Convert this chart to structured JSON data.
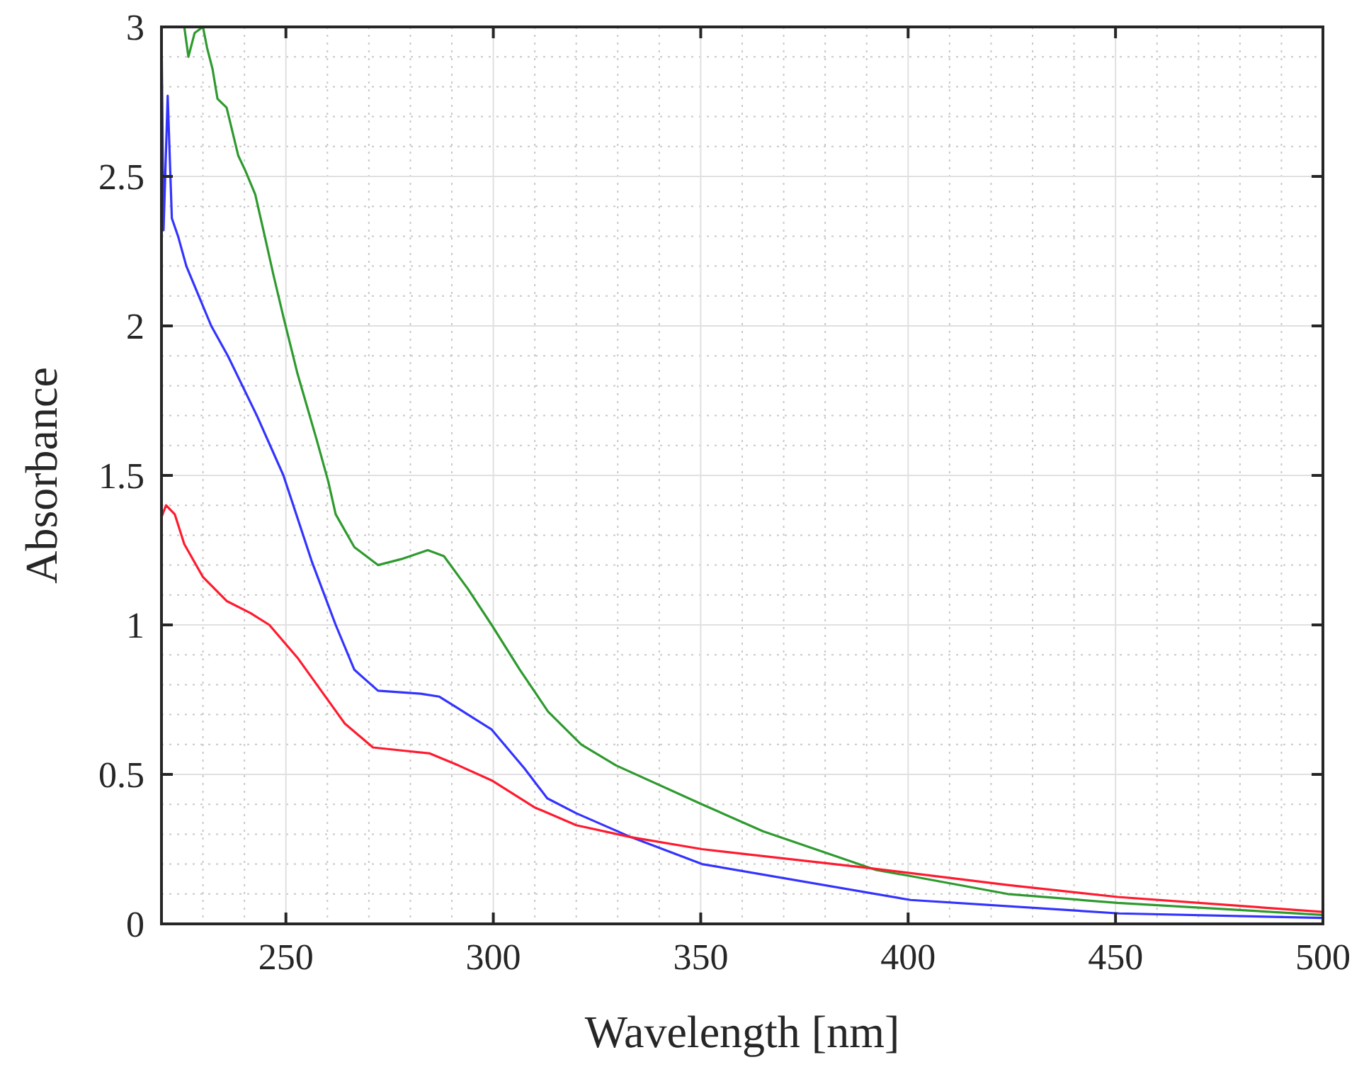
{
  "chart_data": {
    "type": "line",
    "xlabel": "Wavelength [nm]",
    "ylabel": "Absorbance",
    "xlim": [
      220,
      500
    ],
    "ylim": [
      0,
      3
    ],
    "xticks": [
      250,
      300,
      350,
      400,
      450,
      500
    ],
    "yticks": [
      0,
      0.5,
      1,
      1.5,
      2,
      2.5,
      3
    ],
    "grid": true,
    "marker": "none",
    "line_style": "solid",
    "series": [
      {
        "color": "#2e9a2e",
        "x": [
          225.5,
          226.5,
          228,
          230,
          231,
          232.3,
          233.5,
          235.7,
          238.5,
          240.2,
          242.6,
          244.9,
          247,
          249.4,
          252.8,
          257.4,
          260.2,
          262,
          266.5,
          272.2,
          277.8,
          284.2,
          288.1,
          293.9,
          299.6,
          306.4,
          313.2,
          321.2,
          329.6,
          350.3,
          365,
          392.3,
          400.6,
          424,
          450.5,
          500
        ],
        "values": [
          3.0,
          2.9,
          2.98,
          3.0,
          2.93,
          2.86,
          2.76,
          2.73,
          2.57,
          2.52,
          2.44,
          2.3,
          2.17,
          2.03,
          1.84,
          1.62,
          1.48,
          1.37,
          1.26,
          1.2,
          1.22,
          1.25,
          1.23,
          1.12,
          1.0,
          0.85,
          0.71,
          0.6,
          0.53,
          0.4,
          0.31,
          0.18,
          0.16,
          0.1,
          0.07,
          0.03
        ]
      },
      {
        "color": "#3333ff",
        "x": [
          220,
          220.5,
          221.5,
          222.5,
          224,
          226,
          229,
          232,
          236,
          243,
          249.4,
          256.3,
          262,
          266.5,
          272.2,
          282.5,
          287,
          291.6,
          299.6,
          307.5,
          313,
          320,
          333.2,
          350.3,
          400.6,
          450.9,
          500
        ],
        "values": [
          3.0,
          2.32,
          2.77,
          2.36,
          2.3,
          2.2,
          2.1,
          2.0,
          1.9,
          1.7,
          1.5,
          1.21,
          1.0,
          0.85,
          0.78,
          0.77,
          0.76,
          0.72,
          0.65,
          0.52,
          0.42,
          0.37,
          0.29,
          0.2,
          0.08,
          0.035,
          0.02
        ]
      },
      {
        "color": "#ff1a2e",
        "x": [
          220,
          221.1,
          223.2,
          225.5,
          230,
          235.7,
          241.4,
          246,
          252.8,
          258.5,
          264.2,
          271,
          277.9,
          284.7,
          291.6,
          299.6,
          309.9,
          320,
          333.2,
          350.3,
          388.6,
          424,
          450.5,
          500
        ],
        "values": [
          1.36,
          1.4,
          1.37,
          1.27,
          1.16,
          1.08,
          1.04,
          1.0,
          0.89,
          0.78,
          0.67,
          0.59,
          0.58,
          0.57,
          0.53,
          0.48,
          0.39,
          0.33,
          0.29,
          0.25,
          0.19,
          0.13,
          0.09,
          0.04
        ]
      }
    ]
  }
}
